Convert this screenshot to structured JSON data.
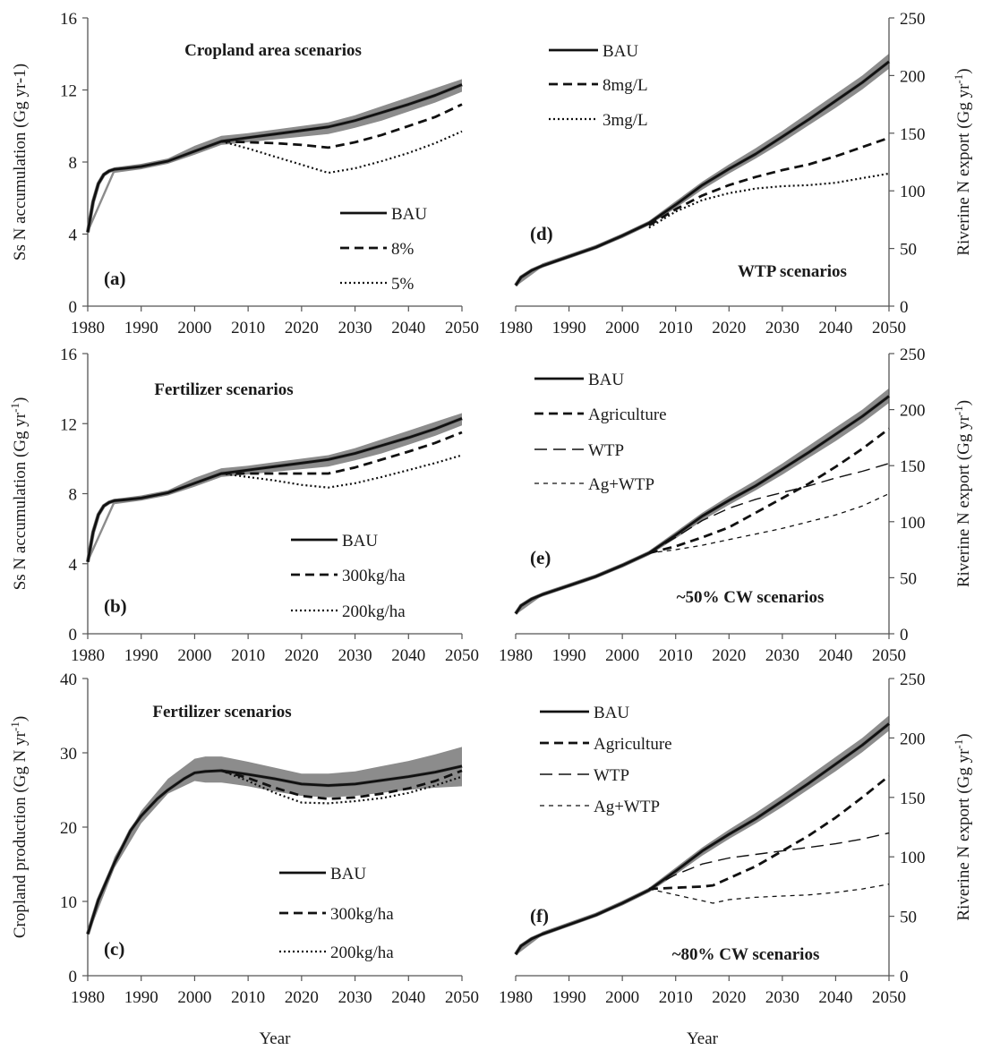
{
  "chart_data": [
    {
      "type": "line",
      "panel": "(a)",
      "title": "Cropland area scenarios",
      "ylabel": "Ss N accumulation (Gg yr-1)",
      "ylabel_sup": "",
      "ylabel_tail": "",
      "xlim": [
        1980,
        2050
      ],
      "ylim": [
        0,
        16
      ],
      "yticks": [
        0,
        4,
        8,
        12,
        16
      ],
      "band": {
        "x": [
          1980,
          1985,
          1990,
          1995,
          2000,
          2005,
          2010,
          2015,
          2020,
          2025,
          2030,
          2035,
          2040,
          2045,
          2050
        ],
        "lower": [
          4.0,
          7.4,
          7.6,
          7.9,
          8.4,
          8.95,
          9.1,
          9.25,
          9.4,
          9.55,
          9.9,
          10.3,
          10.8,
          11.3,
          11.9
        ],
        "upper": [
          4.3,
          7.7,
          7.9,
          8.2,
          8.9,
          9.45,
          9.6,
          9.8,
          10.0,
          10.2,
          10.6,
          11.1,
          11.6,
          12.1,
          12.6
        ]
      },
      "legend_position": "bottom-right",
      "series": [
        {
          "name": "BAU",
          "style": "solid",
          "x": [
            1980,
            1981,
            1982,
            1983,
            1984,
            1985,
            1987,
            1990,
            1995,
            2000,
            2005,
            2010,
            2015,
            2020,
            2025,
            2030,
            2035,
            2040,
            2045,
            2050
          ],
          "y": [
            4.1,
            5.8,
            6.8,
            7.3,
            7.5,
            7.6,
            7.65,
            7.75,
            8.05,
            8.6,
            9.15,
            9.35,
            9.55,
            9.75,
            9.95,
            10.3,
            10.75,
            11.2,
            11.7,
            12.3
          ]
        },
        {
          "name": "8%",
          "style": "dashed",
          "x": [
            2005,
            2010,
            2015,
            2020,
            2025,
            2030,
            2035,
            2040,
            2045,
            2050
          ],
          "y": [
            9.15,
            9.1,
            9.05,
            8.95,
            8.8,
            9.1,
            9.5,
            10.0,
            10.5,
            11.2
          ]
        },
        {
          "name": "5%",
          "style": "dotted",
          "x": [
            2005,
            2010,
            2015,
            2020,
            2025,
            2030,
            2035,
            2040,
            2045,
            2050
          ],
          "y": [
            9.15,
            8.75,
            8.3,
            7.85,
            7.4,
            7.65,
            8.05,
            8.5,
            9.05,
            9.7
          ]
        }
      ]
    },
    {
      "type": "line",
      "panel": "(b)",
      "title": "Fertilizer scenarios",
      "ylabel": "Ss N accumulation (Gg yr",
      "ylabel_sup": "-1",
      "ylabel_tail": ")",
      "xlim": [
        1980,
        2050
      ],
      "ylim": [
        0,
        16
      ],
      "yticks": [
        0,
        4,
        8,
        12,
        16
      ],
      "band": {
        "x": [
          1980,
          1985,
          1990,
          1995,
          2000,
          2005,
          2010,
          2015,
          2020,
          2025,
          2030,
          2035,
          2040,
          2045,
          2050
        ],
        "lower": [
          4.0,
          7.4,
          7.6,
          7.9,
          8.4,
          8.95,
          9.1,
          9.25,
          9.4,
          9.55,
          9.9,
          10.3,
          10.8,
          11.3,
          11.9
        ],
        "upper": [
          4.3,
          7.7,
          7.9,
          8.2,
          8.9,
          9.45,
          9.6,
          9.8,
          10.0,
          10.2,
          10.6,
          11.1,
          11.6,
          12.1,
          12.6
        ]
      },
      "legend_position": "bottom-right",
      "series": [
        {
          "name": "BAU",
          "style": "solid",
          "x": [
            1980,
            1981,
            1982,
            1983,
            1984,
            1985,
            1987,
            1990,
            1995,
            2000,
            2005,
            2010,
            2015,
            2020,
            2025,
            2030,
            2035,
            2040,
            2045,
            2050
          ],
          "y": [
            4.1,
            5.8,
            6.8,
            7.3,
            7.5,
            7.6,
            7.65,
            7.75,
            8.05,
            8.6,
            9.15,
            9.35,
            9.55,
            9.75,
            9.95,
            10.3,
            10.75,
            11.2,
            11.7,
            12.3
          ]
        },
        {
          "name": "300kg/ha",
          "style": "dashed",
          "x": [
            2005,
            2010,
            2015,
            2020,
            2025,
            2030,
            2035,
            2040,
            2045,
            2050
          ],
          "y": [
            9.15,
            9.15,
            9.15,
            9.15,
            9.15,
            9.5,
            9.95,
            10.4,
            10.9,
            11.5
          ]
        },
        {
          "name": "200kg/ha",
          "style": "dotted",
          "x": [
            2005,
            2010,
            2015,
            2020,
            2025,
            2030,
            2035,
            2040,
            2045,
            2050
          ],
          "y": [
            9.15,
            8.95,
            8.75,
            8.5,
            8.35,
            8.6,
            8.95,
            9.35,
            9.75,
            10.2
          ]
        }
      ]
    },
    {
      "type": "line",
      "panel": "(c)",
      "title": "Fertilizer scenarios",
      "ylabel": "Cropland production (Gg N yr",
      "ylabel_sup": "-1",
      "ylabel_tail": ")",
      "xlabel": "Year",
      "xlim": [
        1980,
        2050
      ],
      "ylim": [
        0,
        40
      ],
      "yticks": [
        0,
        10,
        20,
        30,
        40
      ],
      "band": {
        "x": [
          1980,
          1985,
          1990,
          1995,
          2000,
          2002,
          2005,
          2010,
          2015,
          2020,
          2025,
          2030,
          2035,
          2040,
          2045,
          2050
        ],
        "lower": [
          5.3,
          14.5,
          20.5,
          24.5,
          26.2,
          26.0,
          26.0,
          25.5,
          24.8,
          24.2,
          24.0,
          24.2,
          24.6,
          25.0,
          25.3,
          25.5
        ],
        "upper": [
          6.0,
          16.0,
          22.2,
          26.5,
          29.2,
          29.5,
          29.5,
          28.8,
          28.0,
          27.2,
          27.2,
          27.5,
          28.2,
          28.9,
          29.8,
          30.8
        ]
      },
      "legend_position": "bottom-right",
      "series": [
        {
          "name": "BAU",
          "style": "solid",
          "x": [
            1980,
            1982,
            1985,
            1988,
            1990,
            1993,
            1995,
            1998,
            2000,
            2002,
            2005,
            2010,
            2015,
            2020,
            2025,
            2030,
            2035,
            2040,
            2045,
            2050
          ],
          "y": [
            5.6,
            10.2,
            15.2,
            19.5,
            21.5,
            23.8,
            25.0,
            26.5,
            27.3,
            27.5,
            27.6,
            27.1,
            26.5,
            25.8,
            25.6,
            25.8,
            26.3,
            26.8,
            27.4,
            28.2
          ]
        },
        {
          "name": "300kg/ha",
          "style": "dashed",
          "x": [
            2005,
            2010,
            2015,
            2020,
            2025,
            2030,
            2035,
            2040,
            2045,
            2050
          ],
          "y": [
            27.6,
            26.6,
            25.3,
            24.2,
            23.8,
            24.0,
            24.5,
            25.2,
            26.2,
            27.6
          ]
        },
        {
          "name": "200kg/ha",
          "style": "dotted",
          "x": [
            2005,
            2010,
            2015,
            2020,
            2025,
            2030,
            2035,
            2040,
            2045,
            2050
          ],
          "y": [
            27.6,
            26.2,
            24.6,
            23.3,
            23.2,
            23.5,
            23.9,
            24.6,
            25.6,
            26.8
          ]
        }
      ]
    },
    {
      "type": "line",
      "panel": "(d)",
      "title": "WTP scenarios",
      "ylabel": "Riverine N export (Gg yr",
      "ylabel_sup": "-1",
      "ylabel_tail": ")",
      "xlim": [
        1980,
        2050
      ],
      "ylim": [
        0,
        250
      ],
      "yticks": [
        0,
        50,
        100,
        150,
        200,
        250
      ],
      "band": {
        "x": [
          1980,
          1985,
          1990,
          1995,
          2000,
          2005,
          2010,
          2015,
          2020,
          2025,
          2030,
          2035,
          2040,
          2045,
          2050
        ],
        "lower": [
          17,
          34,
          42,
          50,
          59,
          70,
          85,
          101,
          115,
          128,
          142,
          157,
          172,
          188,
          206
        ],
        "upper": [
          20,
          37,
          45,
          53,
          63,
          74,
          91,
          108,
          123,
          137,
          152,
          168,
          184,
          200,
          219
        ]
      },
      "legend_position": "top-left",
      "series": [
        {
          "name": "BAU",
          "style": "solid",
          "x": [
            1980,
            1981,
            1983,
            1985,
            1990,
            1995,
            2000,
            2005,
            2010,
            2015,
            2020,
            2025,
            2030,
            2035,
            2040,
            2045,
            2050
          ],
          "y": [
            18,
            25,
            31,
            35,
            43,
            51,
            61,
            72,
            88,
            105,
            119,
            132,
            147,
            162,
            178,
            194,
            212
          ]
        },
        {
          "name": "8mg/L",
          "style": "dashed",
          "x": [
            2005,
            2010,
            2015,
            2020,
            2025,
            2030,
            2035,
            2040,
            2045,
            2050
          ],
          "y": [
            70,
            84,
            96,
            105,
            112,
            118,
            123,
            130,
            138,
            146
          ]
        },
        {
          "name": "3mg/L",
          "style": "dotted",
          "x": [
            2005,
            2010,
            2015,
            2020,
            2025,
            2030,
            2035,
            2040,
            2045,
            2050
          ],
          "y": [
            68,
            82,
            92,
            98,
            102,
            104,
            105,
            107,
            111,
            115
          ]
        }
      ]
    },
    {
      "type": "line",
      "panel": "(e)",
      "title": "~50% CW scenarios",
      "ylabel": "Riverine N export (Gg yr",
      "ylabel_sup": "-1",
      "ylabel_tail": ")",
      "xlim": [
        1980,
        2050
      ],
      "ylim": [
        0,
        250
      ],
      "yticks": [
        0,
        50,
        100,
        150,
        200,
        250
      ],
      "band": {
        "x": [
          1980,
          1985,
          1990,
          1995,
          2000,
          2005,
          2010,
          2015,
          2020,
          2025,
          2030,
          2035,
          2040,
          2045,
          2050
        ],
        "lower": [
          17,
          34,
          42,
          50,
          59,
          70,
          85,
          101,
          115,
          128,
          142,
          157,
          172,
          188,
          206
        ],
        "upper": [
          20,
          37,
          45,
          53,
          63,
          74,
          91,
          108,
          123,
          137,
          152,
          168,
          184,
          200,
          219
        ]
      },
      "legend_position": "top-left",
      "series": [
        {
          "name": "BAU",
          "style": "solid",
          "x": [
            1980,
            1981,
            1983,
            1985,
            1990,
            1995,
            2000,
            2005,
            2010,
            2015,
            2020,
            2025,
            2030,
            2035,
            2040,
            2045,
            2050
          ],
          "y": [
            18,
            25,
            31,
            35,
            43,
            51,
            61,
            72,
            88,
            105,
            119,
            132,
            147,
            162,
            178,
            194,
            212
          ]
        },
        {
          "name": "Agriculture",
          "style": "dashed",
          "x": [
            2005,
            2010,
            2015,
            2020,
            2025,
            2030,
            2035,
            2040,
            2045,
            2050
          ],
          "y": [
            72,
            78,
            86,
            95,
            108,
            121,
            134,
            149,
            165,
            183
          ]
        },
        {
          "name": "WTP",
          "style": "longdash",
          "x": [
            2005,
            2010,
            2015,
            2020,
            2025,
            2030,
            2035,
            2040,
            2045,
            2050
          ],
          "y": [
            72,
            86,
            101,
            112,
            120,
            126,
            132,
            139,
            145,
            152
          ]
        },
        {
          "name": "Ag+WTP",
          "style": "shortdash",
          "x": [
            2005,
            2010,
            2015,
            2020,
            2025,
            2030,
            2035,
            2040,
            2045,
            2050
          ],
          "y": [
            72,
            75,
            79,
            84,
            89,
            94,
            100,
            106,
            114,
            125
          ]
        }
      ]
    },
    {
      "type": "line",
      "panel": "(f)",
      "title": "~80% CW scenarios",
      "ylabel": "Riverine N export (Gg yr",
      "ylabel_sup": "-1",
      "ylabel_tail": ")",
      "xlabel": "Year",
      "xlim": [
        1980,
        2050
      ],
      "ylim": [
        0,
        250
      ],
      "yticks": [
        0,
        50,
        100,
        150,
        200,
        250
      ],
      "band": {
        "x": [
          1980,
          1985,
          1990,
          1995,
          2000,
          2005,
          2010,
          2015,
          2020,
          2025,
          2030,
          2035,
          2040,
          2045,
          2050
        ],
        "lower": [
          17,
          34,
          42,
          50,
          59,
          70,
          85,
          101,
          115,
          128,
          142,
          157,
          172,
          188,
          206
        ],
        "upper": [
          20,
          37,
          45,
          53,
          63,
          74,
          91,
          108,
          123,
          137,
          152,
          168,
          184,
          200,
          219
        ]
      },
      "legend_position": "top-left",
      "series": [
        {
          "name": "BAU",
          "style": "solid",
          "x": [
            1980,
            1981,
            1983,
            1985,
            1990,
            1995,
            2000,
            2005,
            2010,
            2015,
            2020,
            2025,
            2030,
            2035,
            2040,
            2045,
            2050
          ],
          "y": [
            18,
            25,
            31,
            35,
            43,
            51,
            61,
            72,
            88,
            105,
            119,
            132,
            147,
            162,
            178,
            194,
            212
          ]
        },
        {
          "name": "Agriculture",
          "style": "dashed",
          "x": [
            2005,
            2010,
            2015,
            2017,
            2020,
            2025,
            2030,
            2035,
            2040,
            2045,
            2050
          ],
          "y": [
            73,
            74,
            75,
            76,
            82,
            92,
            105,
            118,
            133,
            150,
            168
          ]
        },
        {
          "name": "WTP",
          "style": "longdash",
          "x": [
            2005,
            2010,
            2015,
            2020,
            2025,
            2030,
            2035,
            2040,
            2045,
            2050
          ],
          "y": [
            73,
            85,
            94,
            99,
            102,
            105,
            108,
            111,
            115,
            120
          ]
        },
        {
          "name": "Ag+WTP",
          "style": "shortdash",
          "x": [
            2005,
            2010,
            2015,
            2017,
            2020,
            2025,
            2030,
            2035,
            2040,
            2045,
            2050
          ],
          "y": [
            73,
            68,
            63,
            61,
            64,
            66,
            67,
            68,
            70,
            73,
            77
          ]
        }
      ]
    }
  ],
  "x_ticks": [
    1980,
    1990,
    2000,
    2010,
    2020,
    2030,
    2040,
    2050
  ],
  "colors": {
    "band": "#8c8c8c",
    "line": "#111111",
    "axis": "#555555",
    "bau_edge": "#777777"
  }
}
